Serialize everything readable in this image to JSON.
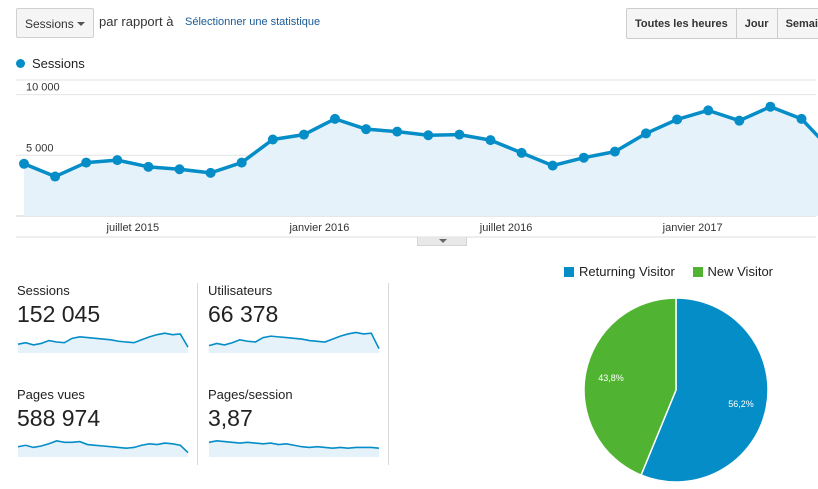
{
  "toolbar": {
    "metric_select": "Sessions",
    "vs_text": "par rapport à",
    "select_stat_link": "Sélectionner une statistique",
    "ranges": [
      "Toutes les heures",
      "Jour",
      "Semaine"
    ]
  },
  "colors": {
    "line": "#058dc7",
    "area": "#e6f2f9",
    "returning": "#058dc7",
    "new": "#50b432"
  },
  "chart_data": [
    {
      "type": "line",
      "series": [
        {
          "name": "Sessions",
          "values": [
            4300,
            3250,
            4400,
            4600,
            4050,
            3850,
            3550,
            4400,
            6300,
            6700,
            8000,
            7150,
            6950,
            6650,
            6700,
            6250,
            5200,
            4150,
            4800,
            5300,
            6800,
            7950,
            8700,
            7850,
            9000,
            8000,
            5300
          ]
        }
      ],
      "ylim": [
        0,
        11200
      ],
      "yticks": [
        {
          "value": 10000,
          "label": "10 000"
        },
        {
          "value": 5000,
          "label": "5 000"
        }
      ],
      "xticks": [
        {
          "index": 3.5,
          "label": "juillet 2015"
        },
        {
          "index": 9.5,
          "label": "janvier 2016"
        },
        {
          "index": 15.5,
          "label": "juillet 2016"
        },
        {
          "index": 21.5,
          "label": "janvier 2017"
        }
      ],
      "grid": true
    },
    {
      "type": "pie",
      "slices": [
        {
          "label": "Returning Visitor",
          "value": 56.2,
          "display": "56,2%"
        },
        {
          "label": "New Visitor",
          "value": 43.8,
          "display": "43,8%"
        }
      ]
    }
  ],
  "metrics": [
    {
      "label": "Sessions",
      "value": "152 045",
      "spark": [
        42,
        44,
        41,
        43,
        47,
        45,
        44,
        50,
        52,
        51,
        50,
        49,
        48,
        46,
        45,
        44,
        48,
        52,
        55,
        57,
        55,
        56,
        38
      ]
    },
    {
      "label": "Utilisateurs",
      "value": "66 378",
      "spark": [
        40,
        43,
        41,
        44,
        48,
        46,
        45,
        51,
        53,
        52,
        51,
        50,
        49,
        47,
        46,
        45,
        49,
        53,
        56,
        58,
        56,
        57,
        36
      ]
    },
    {
      "label": "Pages vues",
      "value": "588 974",
      "spark": [
        44,
        46,
        43,
        45,
        48,
        52,
        50,
        50,
        51,
        47,
        46,
        45,
        44,
        43,
        42,
        43,
        46,
        48,
        47,
        49,
        48,
        46,
        36
      ]
    },
    {
      "label": "Pages/session",
      "value": "3,87",
      "spark": [
        50,
        52,
        51,
        50,
        49,
        50,
        49,
        48,
        49,
        47,
        48,
        46,
        44,
        43,
        44,
        43,
        42,
        43,
        42,
        43,
        43,
        43,
        42
      ]
    }
  ]
}
